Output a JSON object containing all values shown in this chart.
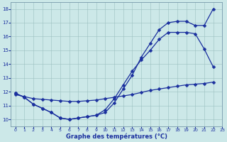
{
  "xlabel": "Graphe des températures (°C)",
  "xlim": [
    -0.5,
    23
  ],
  "ylim": [
    9.5,
    18.5
  ],
  "xticks": [
    0,
    1,
    2,
    3,
    4,
    5,
    6,
    7,
    8,
    9,
    10,
    11,
    12,
    13,
    14,
    15,
    16,
    17,
    18,
    19,
    20,
    21,
    22,
    23
  ],
  "yticks": [
    10,
    11,
    12,
    13,
    14,
    15,
    16,
    17,
    18
  ],
  "bg_color": "#cce8e8",
  "line_color": "#1a2f9e",
  "line1_x": [
    0,
    1,
    2,
    3,
    4,
    5,
    6,
    7,
    8,
    9,
    10,
    11,
    12,
    13,
    14,
    15,
    16,
    17,
    18,
    19,
    20,
    21,
    22
  ],
  "line1_y": [
    11.9,
    11.6,
    11.1,
    10.8,
    10.5,
    10.1,
    10.0,
    10.1,
    10.2,
    10.3,
    10.5,
    11.2,
    12.2,
    13.2,
    14.5,
    15.5,
    16.5,
    17.0,
    17.1,
    17.1,
    16.8,
    16.8,
    18.0
  ],
  "line2_x": [
    0,
    1,
    2,
    3,
    4,
    5,
    6,
    7,
    8,
    9,
    10,
    11,
    12,
    13,
    14,
    15,
    16,
    17,
    18,
    19,
    20,
    21,
    22
  ],
  "line2_y": [
    11.9,
    11.6,
    11.1,
    10.8,
    10.5,
    10.1,
    10.0,
    10.1,
    10.2,
    10.3,
    10.7,
    11.5,
    12.5,
    13.5,
    14.3,
    15.0,
    15.8,
    16.3,
    16.3,
    16.3,
    16.2,
    15.1,
    13.8
  ],
  "line3_x": [
    0,
    1,
    2,
    3,
    4,
    5,
    6,
    7,
    8,
    9,
    10,
    11,
    12,
    13,
    14,
    15,
    16,
    17,
    18,
    19,
    20,
    21,
    22
  ],
  "line3_y": [
    11.8,
    11.65,
    11.5,
    11.45,
    11.4,
    11.35,
    11.3,
    11.3,
    11.35,
    11.4,
    11.5,
    11.6,
    11.7,
    11.8,
    11.95,
    12.1,
    12.2,
    12.3,
    12.4,
    12.5,
    12.55,
    12.6,
    12.7
  ]
}
